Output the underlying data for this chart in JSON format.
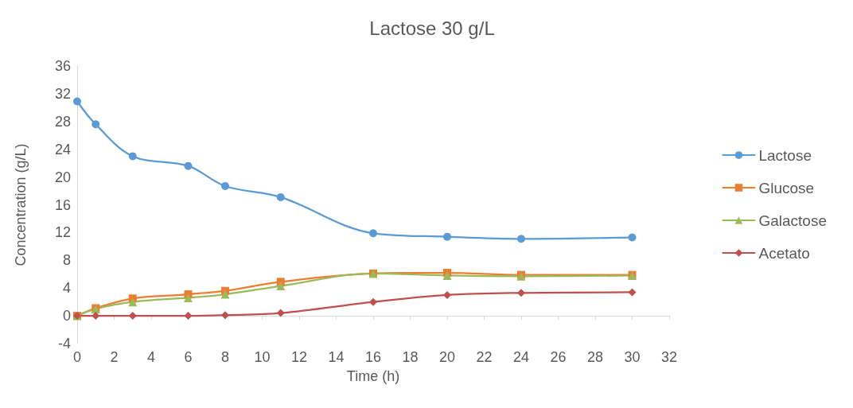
{
  "chart_data": {
    "type": "line",
    "title": "Lactose 30 g/L",
    "xlabel": "Time (h)",
    "ylabel": "Concentration (g/L)",
    "x": [
      0,
      1,
      3,
      6,
      8,
      11,
      16,
      20,
      24,
      30
    ],
    "series": [
      {
        "name": "Lactose",
        "color": "#5b9bd5",
        "marker": "circle",
        "values": [
          30.9,
          27.6,
          23.0,
          21.6,
          18.7,
          17.1,
          11.9,
          11.4,
          11.1,
          11.3
        ]
      },
      {
        "name": "Glucose",
        "color": "#ed7d31",
        "marker": "square",
        "values": [
          0,
          1.1,
          2.5,
          3.1,
          3.6,
          4.9,
          6.1,
          6.2,
          5.9,
          5.9
        ]
      },
      {
        "name": "Galactose",
        "color": "#9bbb59",
        "marker": "triangle",
        "values": [
          0,
          1.0,
          2.0,
          2.6,
          3.1,
          4.3,
          6.1,
          5.8,
          5.7,
          5.8
        ]
      },
      {
        "name": "Acetato",
        "color": "#c0504d",
        "marker": "diamond",
        "values": [
          0,
          0,
          0,
          0,
          0.1,
          0.4,
          2.0,
          3.0,
          3.3,
          3.4
        ]
      }
    ],
    "xlim": [
      0,
      32
    ],
    "xticks": [
      0,
      2,
      4,
      6,
      8,
      10,
      12,
      14,
      16,
      18,
      20,
      22,
      24,
      26,
      28,
      30,
      32
    ],
    "ylim": [
      -4,
      36
    ],
    "yticks": [
      -4,
      0,
      4,
      8,
      12,
      16,
      20,
      24,
      28,
      32,
      36
    ],
    "grid": false,
    "legend": "right",
    "line_style": "solid"
  }
}
